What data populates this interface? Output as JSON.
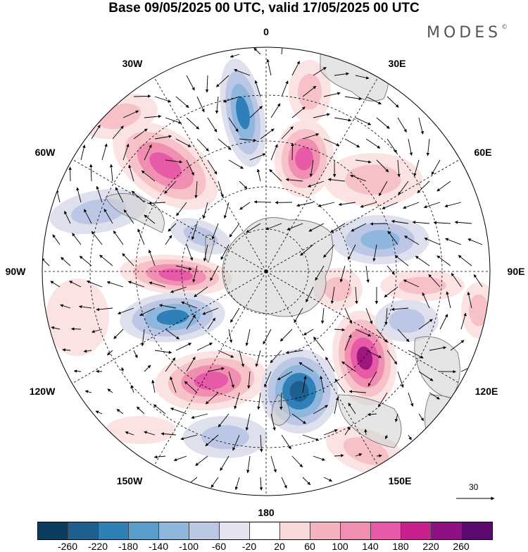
{
  "title": "Base 09/05/2025 00 UTC, valid 17/05/2025 00 UTC",
  "brand": "MODES",
  "brand_mark": "©",
  "meridian_labels": {
    "top": "0",
    "deg30e": "30E",
    "deg60e": "60E",
    "deg90e": "90E",
    "deg120e": "120E",
    "deg150e": "150E",
    "bottom": "180",
    "deg150w": "150W",
    "deg120w": "120W",
    "deg90w": "90W",
    "deg60w": "60W",
    "deg30w": "30W"
  },
  "reference_vector": {
    "value": "30"
  },
  "colorbar": {
    "colors": [
      "#0b3d5e",
      "#1d5f8f",
      "#2f80b8",
      "#5a9fcc",
      "#8fb6dc",
      "#bcc7e6",
      "#e6e4f1",
      "#ffffff",
      "#f9d9d9",
      "#f6b2be",
      "#f08fb2",
      "#e65aa8",
      "#c8208f",
      "#8e1083",
      "#5a0a6e"
    ],
    "ticks": [
      "-260",
      "-220",
      "-180",
      "-140",
      "-100",
      "-60",
      "-20",
      "20",
      "60",
      "100",
      "140",
      "180",
      "220",
      "260"
    ]
  },
  "anomaly_colors": {
    "neg_light": "#dfe0ee",
    "neg_mid": "#bcc7e6",
    "neg_strong": "#8fb6dc",
    "neg_deep": "#2f80b8",
    "neg_core": "#1d5f8f",
    "pos_light": "#fbe3e3",
    "pos_mid": "#f6c2c8",
    "pos_strong": "#f08fb2",
    "pos_deep": "#e65aa8",
    "pos_core": "#a0167f",
    "land": "#cfcfcf"
  }
}
